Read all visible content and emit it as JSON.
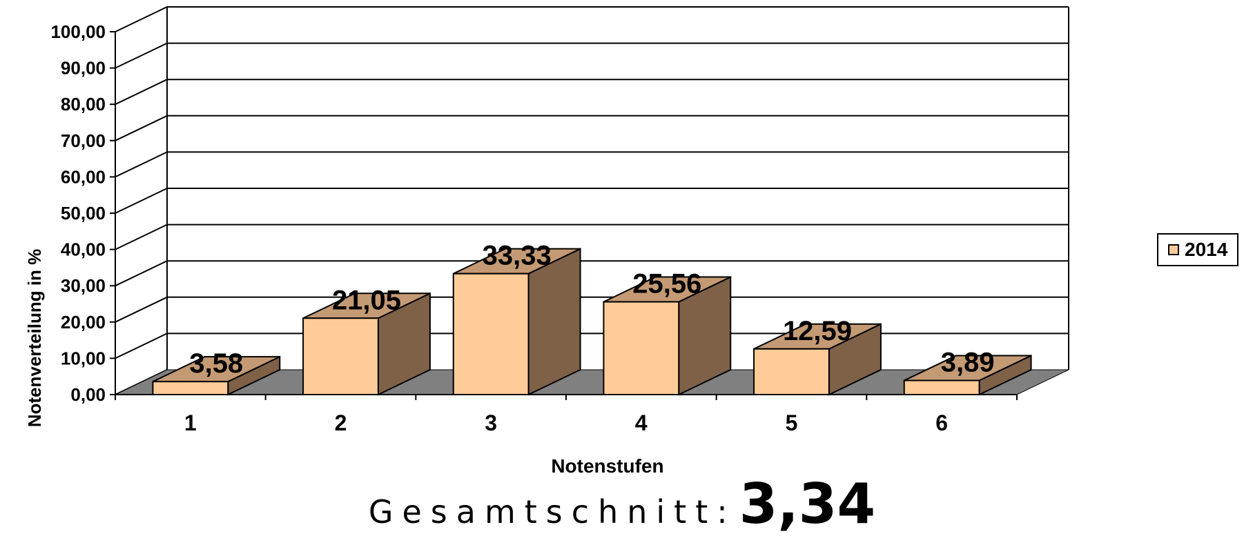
{
  "chart_data": {
    "type": "bar",
    "categories": [
      "1",
      "2",
      "3",
      "4",
      "5",
      "6"
    ],
    "series": [
      {
        "name": "2014",
        "values": [
          3.58,
          21.05,
          33.33,
          25.56,
          12.59,
          3.89
        ],
        "value_labels": [
          "3,58",
          "21,05",
          "33,33",
          "25,56",
          "12,59",
          "3,89"
        ]
      }
    ],
    "ylim": [
      0,
      100
    ],
    "y_ticks": [
      "0,00",
      "10,00",
      "20,00",
      "30,00",
      "40,00",
      "50,00",
      "60,00",
      "70,00",
      "80,00",
      "90,00",
      "100,00"
    ],
    "xlabel": "Notenstufen",
    "ylabel": "Notenverteilung in %",
    "grid": true,
    "legend_position": "right",
    "style": "3d-column",
    "colors": {
      "bar_front": "#FFCC99",
      "bar_top": "#C49A74",
      "bar_side": "#7F6148",
      "floor": "#808080"
    }
  },
  "summary": {
    "label": "Gesamtschnitt:",
    "value": "3,34"
  }
}
